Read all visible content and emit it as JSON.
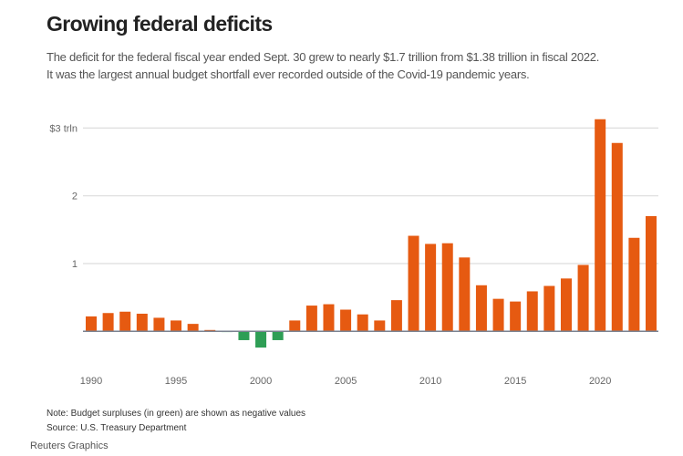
{
  "header": {
    "title": "Growing federal deficits",
    "subtitle_lines": [
      "The deficit for the federal fiscal year ended Sept. 30 grew to nearly $1.7 trillion from $1.38 trillion in fiscal 2022.",
      "It was the largest annual budget shortfall ever recorded outside of the Covid-19 pandemic years."
    ]
  },
  "footer": {
    "note": "Note: Budget surpluses (in green) are shown as negative values",
    "source": "Source: U.S. Treasury Department",
    "credit": "Reuters Graphics"
  },
  "colors": {
    "deficit": "#e65a11",
    "surplus": "#2e9e55",
    "gridline": "#dddddd",
    "baseline": "#7a8290"
  },
  "chart_data": {
    "type": "bar",
    "title": "Growing federal deficits",
    "xlabel": "",
    "ylabel": "",
    "unit": "$ trillion",
    "ylim": [
      -0.3,
      3.2
    ],
    "grid": true,
    "legend": "none",
    "yticks": [
      {
        "value": 3,
        "label": "$3 trln"
      },
      {
        "value": 2,
        "label": "2"
      },
      {
        "value": 1,
        "label": "1"
      }
    ],
    "xticks": [
      {
        "value": 1990,
        "label": "1990"
      },
      {
        "value": 1995,
        "label": "1995"
      },
      {
        "value": 2000,
        "label": "2000"
      },
      {
        "value": 2005,
        "label": "2005"
      },
      {
        "value": 2010,
        "label": "2010"
      },
      {
        "value": 2015,
        "label": "2015"
      },
      {
        "value": 2020,
        "label": "2020"
      }
    ],
    "categories": [
      1990,
      1991,
      1992,
      1993,
      1994,
      1995,
      1996,
      1997,
      1998,
      1999,
      2000,
      2001,
      2002,
      2003,
      2004,
      2005,
      2006,
      2007,
      2008,
      2009,
      2010,
      2011,
      2012,
      2013,
      2014,
      2015,
      2016,
      2017,
      2018,
      2019,
      2020,
      2021,
      2022,
      2023
    ],
    "values": [
      0.22,
      0.27,
      0.29,
      0.26,
      0.2,
      0.16,
      0.11,
      0.02,
      -0.01,
      -0.13,
      -0.24,
      -0.13,
      0.16,
      0.38,
      0.4,
      0.32,
      0.25,
      0.16,
      0.46,
      1.41,
      1.29,
      1.3,
      1.09,
      0.68,
      0.48,
      0.44,
      0.59,
      0.67,
      0.78,
      0.98,
      3.13,
      2.78,
      1.38,
      1.7
    ],
    "notes": "Surpluses (negative values) shown in green; deficits in orange"
  }
}
